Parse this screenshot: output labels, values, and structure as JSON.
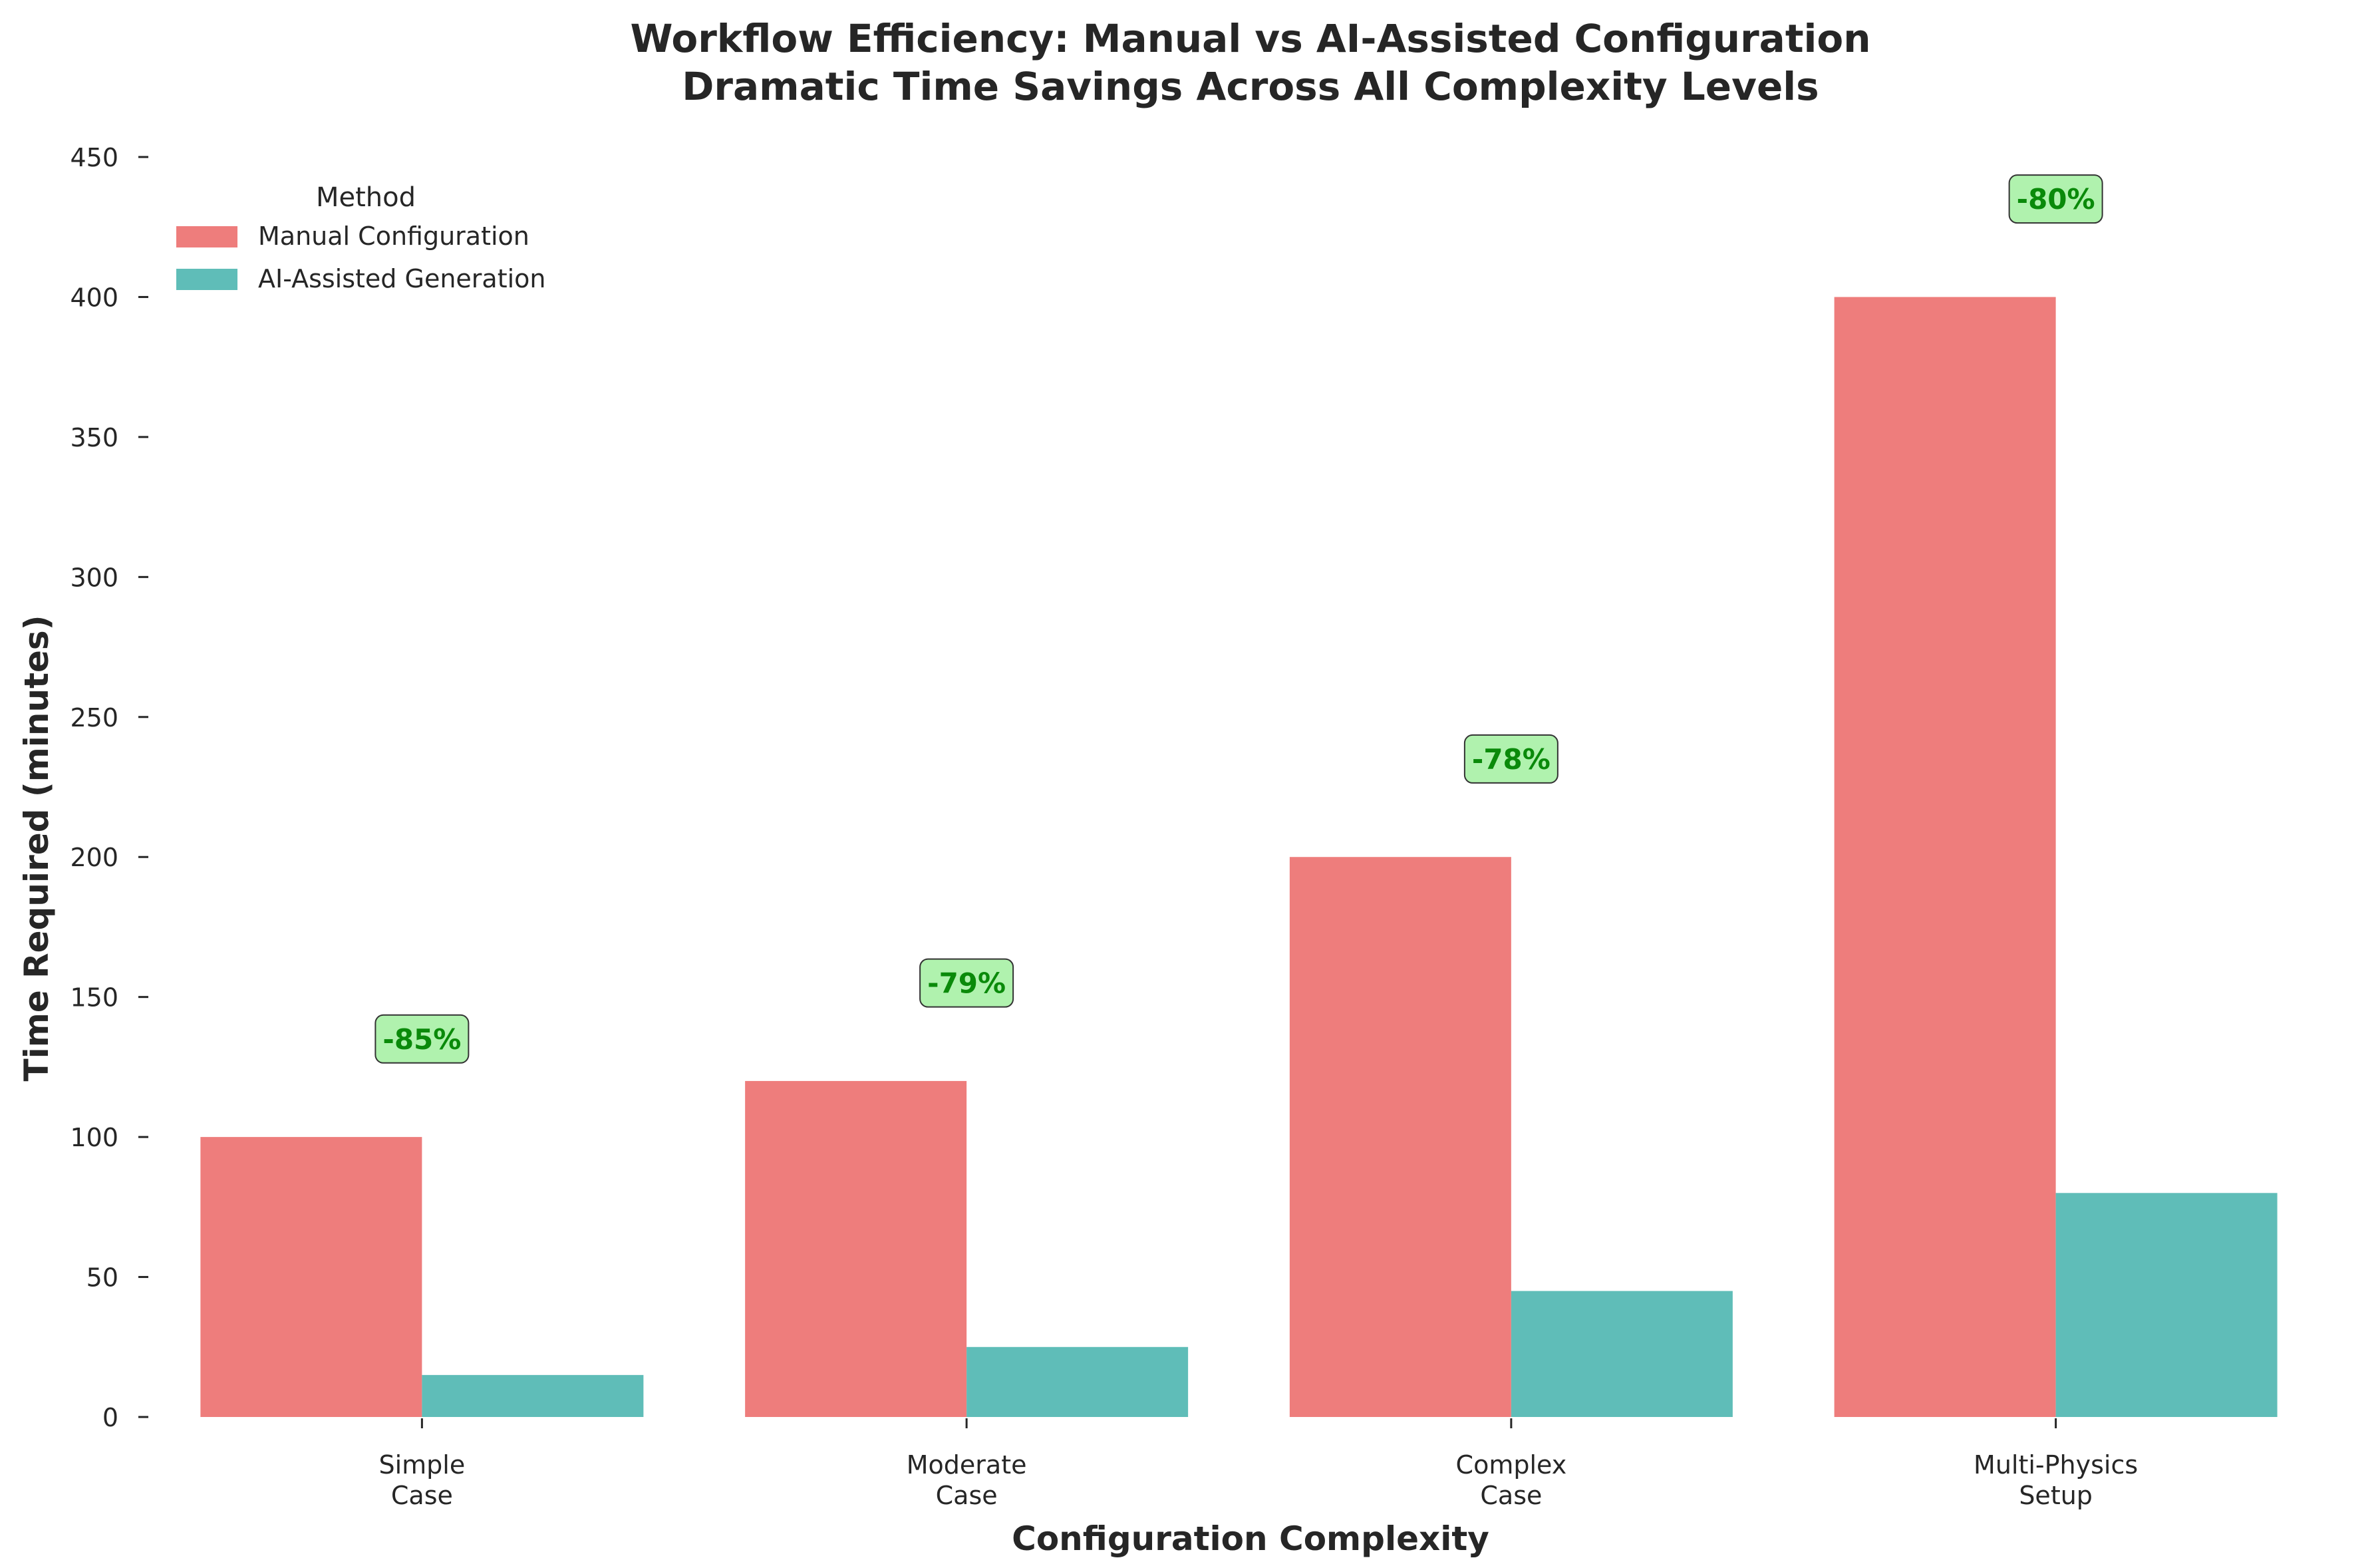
{
  "chart_data": {
    "type": "bar",
    "title_line1": "Workflow Efficiency: Manual vs AI-Assisted Configuration",
    "title_line2": "Dramatic Time Savings Across All Complexity Levels",
    "xlabel": "Configuration Complexity",
    "ylabel": "Time Required (minutes)",
    "categories": [
      [
        "Simple",
        "Case"
      ],
      [
        "Moderate",
        "Case"
      ],
      [
        "Complex",
        "Case"
      ],
      [
        "Multi-Physics",
        "Setup"
      ]
    ],
    "series": [
      {
        "name": "Manual Configuration",
        "color": "#ee7d7c",
        "values": [
          100,
          120,
          200,
          400
        ]
      },
      {
        "name": "AI-Assisted Generation",
        "color": "#5fbdb8",
        "values": [
          15,
          25,
          45,
          80
        ]
      }
    ],
    "annotations": [
      {
        "text": "-85%",
        "y": 135
      },
      {
        "text": "-79%",
        "y": 155
      },
      {
        "text": "-78%",
        "y": 235
      },
      {
        "text": "-80%",
        "y": 435
      }
    ],
    "annotation_style": {
      "fill": "#b0f2ae",
      "text_color": "#0a8a0a",
      "border": "#333333"
    },
    "ylim": [
      0,
      450
    ],
    "yticks": [
      0,
      50,
      100,
      150,
      200,
      250,
      300,
      350,
      400,
      450
    ],
    "legend": {
      "title": "Method",
      "position": "top-left"
    },
    "grid": false
  }
}
